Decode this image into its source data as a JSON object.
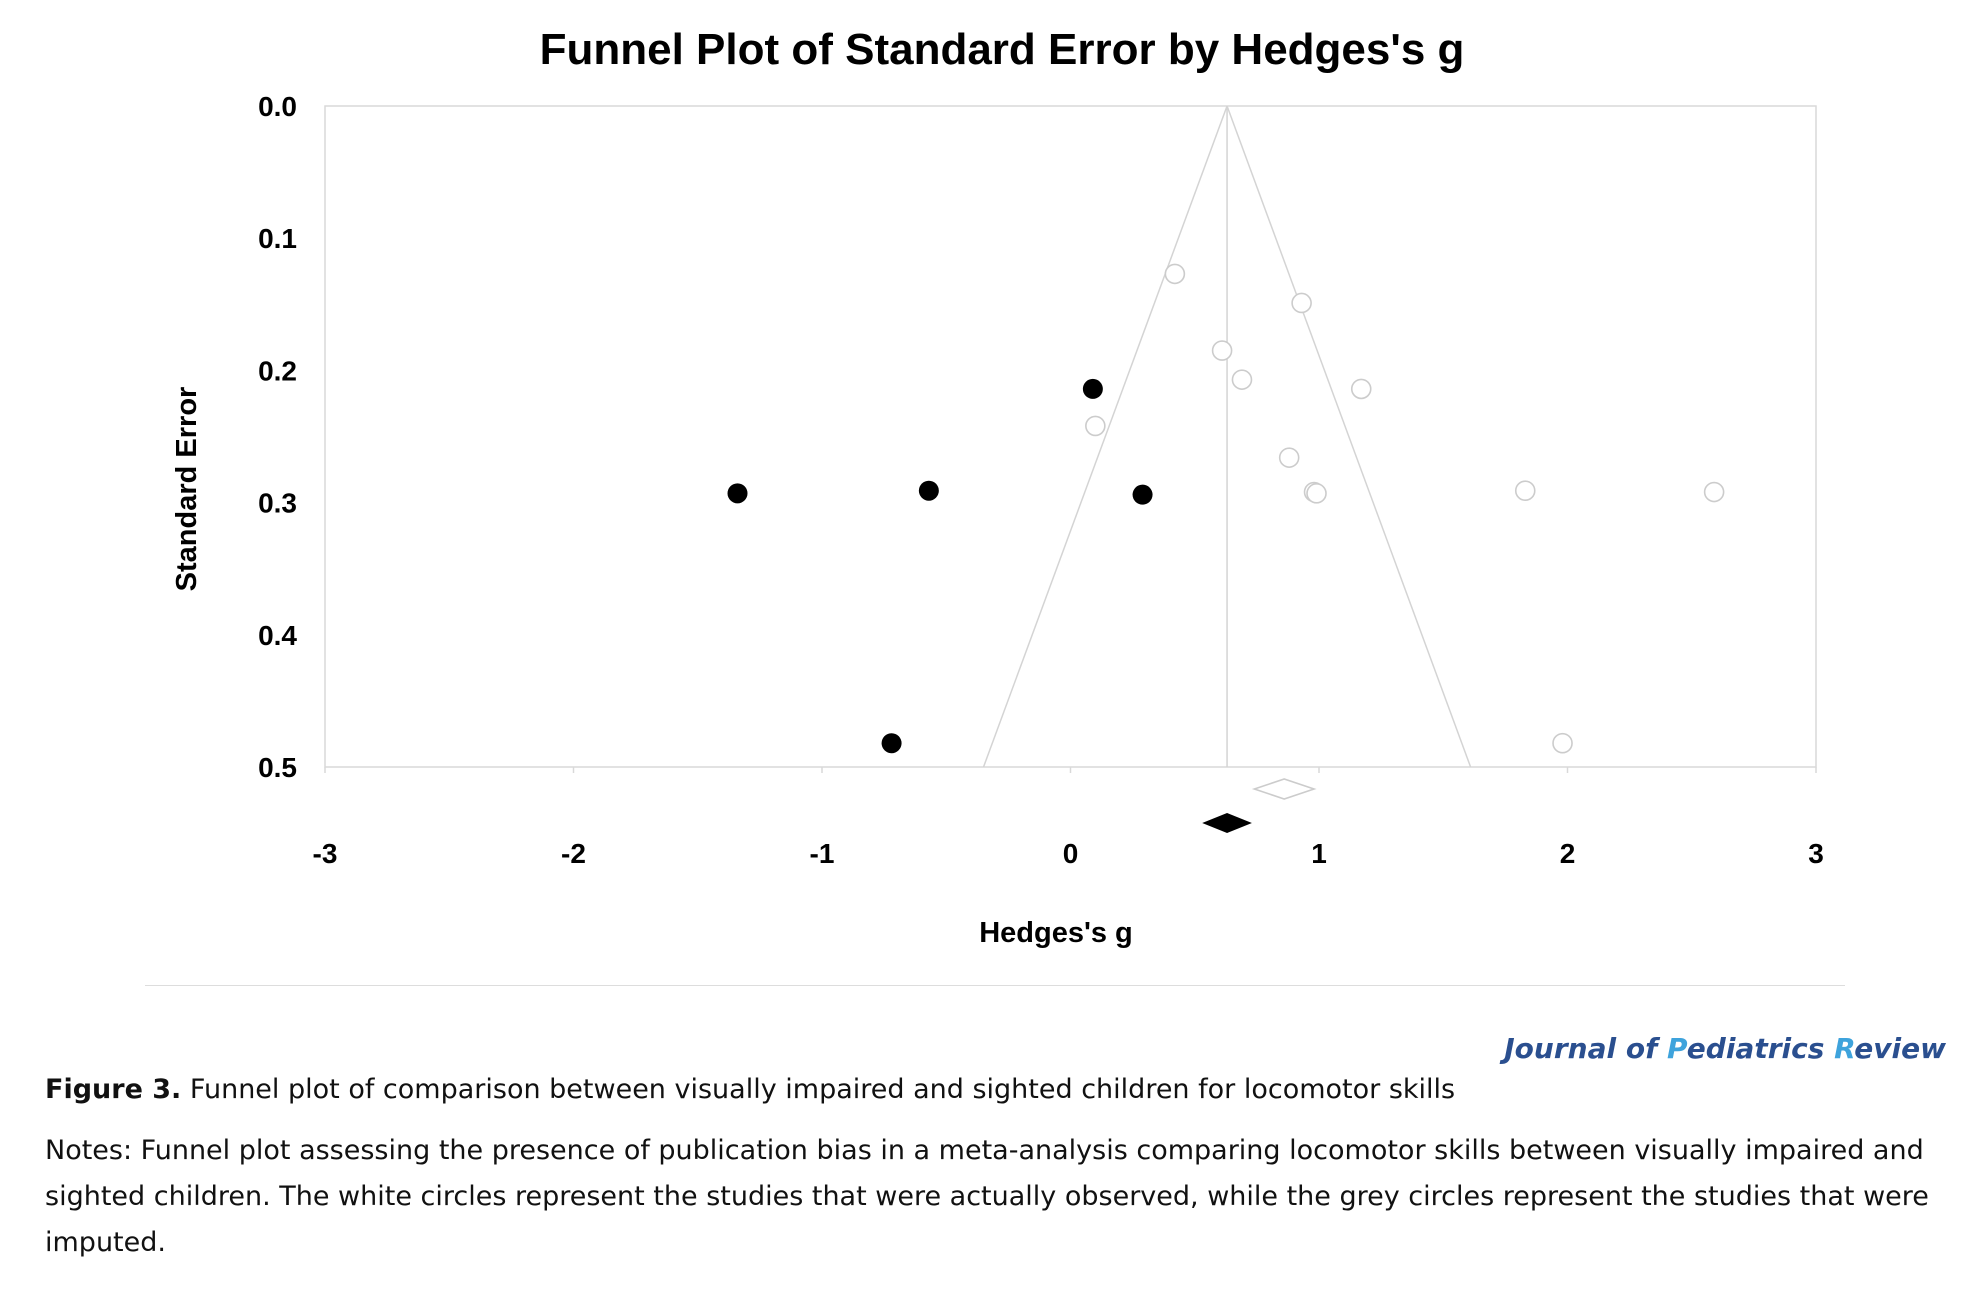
{
  "chart_data": {
    "type": "scatter",
    "title": "Funnel Plot of Standard Error by Hedges's g",
    "xlabel": "Hedges's g",
    "ylabel": "Standard Error",
    "xlim": [
      -3,
      3
    ],
    "ylim": [
      0,
      0.5
    ],
    "y_inverted": true,
    "x_ticks": [
      "-3",
      "-2",
      "-1",
      "0",
      "1",
      "2",
      "3"
    ],
    "y_ticks": [
      "0.0",
      "0.1",
      "0.2",
      "0.3",
      "0.4",
      "0.5"
    ],
    "funnel_center": 0.63,
    "series": [
      {
        "marker": "open-circle",
        "color": "#cccccc",
        "points": [
          {
            "x": 0.42,
            "y": 0.127
          },
          {
            "x": 0.93,
            "y": 0.149
          },
          {
            "x": 0.61,
            "y": 0.185
          },
          {
            "x": 0.69,
            "y": 0.207
          },
          {
            "x": 1.17,
            "y": 0.214
          },
          {
            "x": 0.1,
            "y": 0.242
          },
          {
            "x": 0.88,
            "y": 0.266
          },
          {
            "x": 0.98,
            "y": 0.292
          },
          {
            "x": 0.99,
            "y": 0.293
          },
          {
            "x": 1.83,
            "y": 0.291
          },
          {
            "x": 2.59,
            "y": 0.292
          },
          {
            "x": 1.98,
            "y": 0.482
          }
        ]
      },
      {
        "marker": "filled-circle",
        "color": "#000000",
        "points": [
          {
            "x": 0.09,
            "y": 0.214
          },
          {
            "x": -1.34,
            "y": 0.293
          },
          {
            "x": -0.57,
            "y": 0.291
          },
          {
            "x": 0.29,
            "y": 0.294
          },
          {
            "x": -0.72,
            "y": 0.482
          }
        ]
      }
    ],
    "summary_diamonds": [
      {
        "style": "open",
        "color": "#cccccc",
        "center": 0.86,
        "half_width": 0.12
      },
      {
        "style": "filled",
        "color": "#000000",
        "center": 0.63,
        "half_width": 0.1
      }
    ]
  },
  "journal": {
    "part1": "Journal of ",
    "p": "P",
    "part2": "ediatrics ",
    "r": "R",
    "part3": "eview"
  },
  "caption": {
    "label": "Figure 3.",
    "text": " Funnel plot of comparison between visually impaired and sighted children for locomotor skills"
  },
  "notes": "Notes: Funnel plot assessing the presence of publication bias in a meta-analysis comparing locomotor skills between visually impaired and sighted children. The white circles represent the studies that were actually observed, while the grey circles represent the studies that were imputed."
}
